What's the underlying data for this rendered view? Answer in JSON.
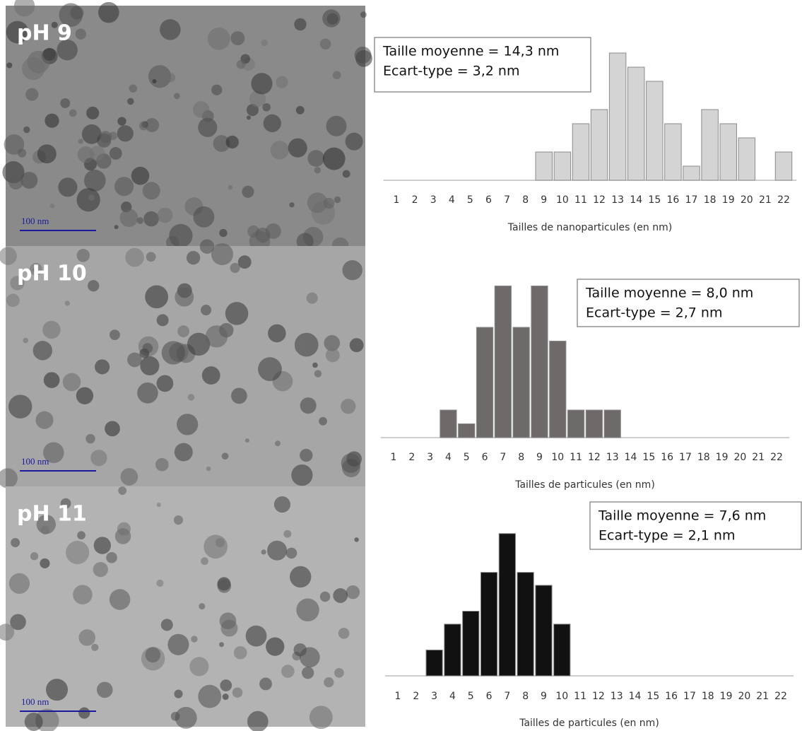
{
  "chart_data": [
    {
      "type": "bar",
      "image_label": "pH 9",
      "scale_bar_label": "100 nm",
      "stats": [
        "Taille moyenne = 14,3 nm",
        "Ecart-type = 3,2 nm"
      ],
      "x_label": "Tailles de nanoparticules (en nm)",
      "categories": [
        "1",
        "2",
        "3",
        "4",
        "5",
        "6",
        "7",
        "8",
        "9",
        "10",
        "11",
        "12",
        "13",
        "14",
        "15",
        "16",
        "17",
        "18",
        "19",
        "20",
        "21",
        "22"
      ],
      "values": [
        0,
        0,
        0,
        0,
        0,
        0,
        0,
        0,
        2,
        2,
        4,
        5,
        9,
        8,
        7,
        4,
        1,
        5,
        4,
        3,
        0,
        2
      ],
      "color": "#d4d4d4"
    },
    {
      "type": "bar",
      "image_label": "pH 10",
      "scale_bar_label": "100 nm",
      "stats": [
        "Taille moyenne = 8,0 nm",
        "Ecart-type = 2,7 nm"
      ],
      "x_label": "Tailles de particules (en nm)",
      "categories": [
        "1",
        "2",
        "3",
        "4",
        "5",
        "6",
        "7",
        "8",
        "9",
        "10",
        "11",
        "12",
        "13",
        "14",
        "15",
        "16",
        "17",
        "18",
        "19",
        "20",
        "21",
        "22"
      ],
      "values": [
        0,
        0,
        0,
        2,
        1,
        8,
        11,
        8,
        11,
        7,
        2,
        2,
        2,
        0,
        0,
        0,
        0,
        0,
        0,
        0,
        0,
        0
      ],
      "color": "#6e6a6a"
    },
    {
      "type": "bar",
      "image_label": "pH 11",
      "scale_bar_label": "100 nm",
      "stats": [
        "Taille moyenne = 7,6 nm",
        "Ecart-type = 2,1 nm"
      ],
      "x_label": "Tailles de particules (en nm)",
      "categories": [
        "1",
        "2",
        "3",
        "4",
        "5",
        "6",
        "7",
        "8",
        "9",
        "10",
        "11",
        "12",
        "13",
        "14",
        "15",
        "16",
        "17",
        "18",
        "19",
        "20",
        "21",
        "22"
      ],
      "values": [
        0,
        0,
        2,
        4,
        5,
        8,
        11,
        8,
        7,
        4,
        0,
        0,
        0,
        0,
        0,
        0,
        0,
        0,
        0,
        0,
        0,
        0
      ],
      "color": "#111111"
    }
  ]
}
